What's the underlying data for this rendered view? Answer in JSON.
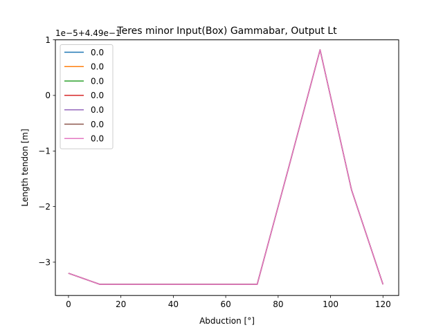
{
  "chart_data": {
    "type": "line",
    "title": "Teres minor Input(Box) Gammabar, Output Lt",
    "xlabel": "Abduction [°]",
    "ylabel": "Length tendon [m]",
    "offset_text": "1e−5+4.49e−1",
    "xlim": [
      -5,
      126
    ],
    "ylim": [
      -3.6,
      1.0
    ],
    "xticks": [
      0,
      20,
      40,
      60,
      80,
      100,
      120
    ],
    "yticks": [
      -3,
      -2,
      -1,
      0,
      1
    ],
    "xtick_labels": [
      "0",
      "20",
      "40",
      "60",
      "80",
      "100",
      "120"
    ],
    "ytick_labels": [
      "−3",
      "−2",
      "−1",
      "0",
      "1"
    ],
    "x": [
      0,
      12,
      24,
      36,
      48,
      60,
      72,
      84,
      96,
      108,
      120
    ],
    "legend_position": "top-left",
    "grid": false,
    "series": [
      {
        "name": "0.0",
        "color": "#1f77b4",
        "values": [
          -3.2,
          -3.4,
          -3.4,
          -3.4,
          -3.4,
          -3.4,
          -3.4,
          -1.3,
          0.82,
          -1.7,
          -3.4
        ]
      },
      {
        "name": "0.0",
        "color": "#ff7f0e",
        "values": [
          -3.2,
          -3.4,
          -3.4,
          -3.4,
          -3.4,
          -3.4,
          -3.4,
          -1.3,
          0.82,
          -1.7,
          -3.4
        ]
      },
      {
        "name": "0.0",
        "color": "#2ca02c",
        "values": [
          -3.2,
          -3.4,
          -3.4,
          -3.4,
          -3.4,
          -3.4,
          -3.4,
          -1.3,
          0.82,
          -1.7,
          -3.4
        ]
      },
      {
        "name": "0.0",
        "color": "#d62728",
        "values": [
          -3.2,
          -3.4,
          -3.4,
          -3.4,
          -3.4,
          -3.4,
          -3.4,
          -1.3,
          0.82,
          -1.7,
          -3.4
        ]
      },
      {
        "name": "0.0",
        "color": "#9467bd",
        "values": [
          -3.2,
          -3.4,
          -3.4,
          -3.4,
          -3.4,
          -3.4,
          -3.4,
          -1.3,
          0.82,
          -1.7,
          -3.4
        ]
      },
      {
        "name": "0.0",
        "color": "#8c564b",
        "values": [
          -3.2,
          -3.4,
          -3.4,
          -3.4,
          -3.4,
          -3.4,
          -3.4,
          -1.3,
          0.82,
          -1.7,
          -3.4
        ]
      },
      {
        "name": "0.0",
        "color": "#e377c2",
        "values": [
          -3.2,
          -3.4,
          -3.4,
          -3.4,
          -3.4,
          -3.4,
          -3.4,
          -1.3,
          0.82,
          -1.7,
          -3.4
        ]
      }
    ]
  }
}
